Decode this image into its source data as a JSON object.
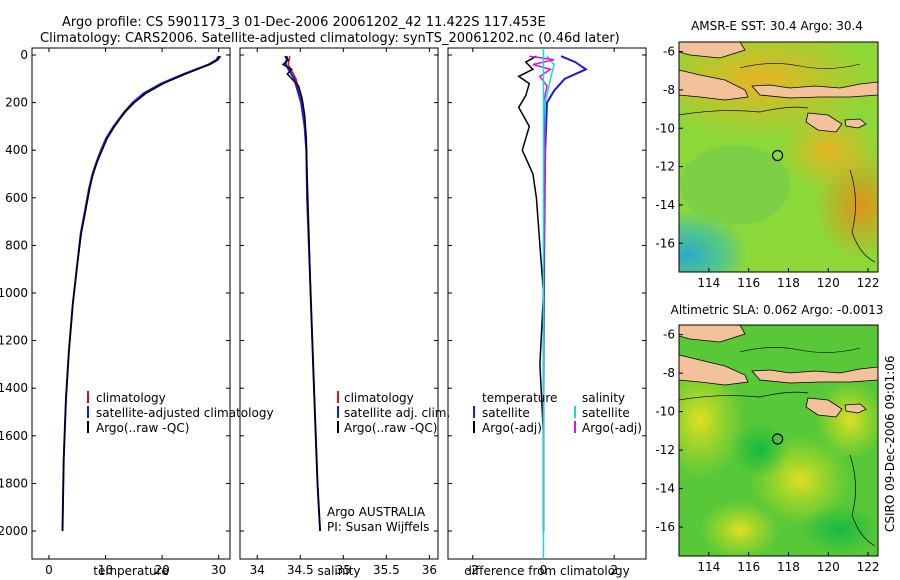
{
  "header": {
    "line1": "Argo profile: CS 5901173_3 01-Dec-2006 20061202_42 11.422S 117.453E",
    "line2": "Climatology: CARS2006. Satellite-adjusted climatology: synTS_20061202.nc (0.46d later)"
  },
  "side_label": "CSIRO 09-Dec-2006 09:01:06",
  "colors": {
    "clim": "#e01010",
    "sat": "#1a1ae6",
    "argo": "#000000",
    "sat_s": "#18d8d8",
    "argo_s": "#e010e0",
    "land": "#f4c29a"
  },
  "chart_data": [
    {
      "type": "line",
      "id": "temperature",
      "xlabel": "temperature",
      "ylabel": "",
      "xlim": [
        -3,
        32
      ],
      "ylim": [
        2080,
        0
      ],
      "xticks": [
        0,
        10,
        20,
        30
      ],
      "yticks": [
        0,
        200,
        400,
        600,
        800,
        1000,
        1200,
        1400,
        1600,
        1800,
        2000
      ],
      "ytick_labels": [
        "0",
        "200",
        "400",
        "600",
        "800",
        "1000",
        "1200",
        "1400",
        "1600",
        "1800",
        "2000"
      ],
      "xtick_labels": [
        "0",
        "10",
        "20",
        "30"
      ],
      "legend": [
        "climatology",
        "satellite-adjusted climatology",
        "Argo(..raw -QC)"
      ],
      "series": [
        {
          "name": "climatology",
          "color_key": "clim",
          "x": [
            30.4,
            29.9,
            28.5,
            24,
            20,
            17,
            15,
            13.5,
            11.5,
            10.2,
            9.3,
            8.5,
            7.8,
            7.2,
            6.5,
            5.7,
            4.9,
            4.2,
            3.5,
            3.0,
            2.6,
            2.4
          ],
          "y": [
            5,
            20,
            40,
            80,
            120,
            160,
            200,
            240,
            300,
            350,
            400,
            450,
            500,
            560,
            650,
            750,
            900,
            1050,
            1250,
            1450,
            1700,
            2000
          ]
        },
        {
          "name": "satellite-adjusted climatology",
          "color_key": "sat",
          "x": [
            30.0,
            29.6,
            28.2,
            23.8,
            19.8,
            16.8,
            14.8,
            13.3,
            11.4,
            10.1,
            9.2,
            8.4,
            7.7,
            7.1,
            6.4,
            5.6,
            4.9,
            4.2,
            3.5,
            3.0,
            2.6,
            2.4
          ],
          "y": [
            5,
            20,
            40,
            80,
            120,
            160,
            200,
            240,
            300,
            350,
            400,
            450,
            500,
            560,
            650,
            750,
            900,
            1050,
            1250,
            1450,
            1700,
            2000
          ]
        },
        {
          "name": "Argo(..raw -QC)",
          "color_key": "argo",
          "x": [
            30.2,
            29.8,
            28.4,
            24.1,
            20.2,
            17.2,
            15.1,
            13.4,
            11.6,
            10.3,
            9.4,
            8.5,
            7.8,
            7.2,
            6.5,
            5.7,
            4.9,
            4.2,
            3.5,
            3.0,
            2.6,
            2.4
          ],
          "y": [
            5,
            20,
            40,
            80,
            120,
            160,
            200,
            240,
            300,
            350,
            400,
            450,
            500,
            560,
            650,
            750,
            900,
            1050,
            1250,
            1450,
            1700,
            2000
          ]
        }
      ]
    },
    {
      "type": "line",
      "id": "salinity",
      "xlabel": "salinity",
      "ylabel": "",
      "xlim": [
        33.8,
        36.1
      ],
      "ylim": [
        2080,
        0
      ],
      "xticks": [
        34,
        34.5,
        35,
        35.5,
        36
      ],
      "xtick_labels": [
        "34",
        "34.5",
        "35",
        "35.5",
        "36"
      ],
      "legend": [
        "climatology",
        "satellite adj. clim.",
        "Argo(..raw -QC)"
      ],
      "annotation": [
        "Argo AUSTRALIA",
        "PI: Susan Wijffels"
      ],
      "series": [
        {
          "name": "climatology",
          "color_key": "clim",
          "x": [
            34.38,
            34.36,
            34.45,
            34.52,
            34.55,
            34.57,
            34.58,
            34.6,
            34.62,
            34.66,
            34.7,
            34.73
          ],
          "y": [
            5,
            40,
            100,
            200,
            300,
            400,
            600,
            800,
            1000,
            1400,
            1800,
            2000
          ]
        },
        {
          "name": "satellite adj. clim.",
          "color_key": "sat",
          "x": [
            34.35,
            34.33,
            34.43,
            34.51,
            34.55,
            34.57,
            34.58,
            34.6,
            34.62,
            34.66,
            34.7,
            34.73
          ],
          "y": [
            5,
            40,
            100,
            200,
            300,
            400,
            600,
            800,
            1000,
            1400,
            1800,
            2000
          ]
        },
        {
          "name": "Argo(..raw -QC)",
          "color_key": "argo",
          "x": [
            34.32,
            34.36,
            34.3,
            34.4,
            34.35,
            34.48,
            34.52,
            34.55,
            34.57,
            34.58,
            34.6,
            34.62,
            34.66,
            34.7,
            34.73
          ],
          "y": [
            5,
            20,
            40,
            60,
            80,
            130,
            180,
            250,
            350,
            500,
            750,
            1000,
            1400,
            1800,
            2000
          ]
        }
      ]
    },
    {
      "type": "line",
      "id": "difference",
      "xlabel": "difference from climatology",
      "ylabel": "",
      "xlim": [
        -2.7,
        2.9
      ],
      "ylim": [
        2080,
        0
      ],
      "xticks": [
        -2,
        0,
        2
      ],
      "xtick_labels": [
        "-2",
        "0",
        "2"
      ],
      "legend_left_title": "temperature",
      "legend_left": [
        "satellite",
        "Argo(-adj)"
      ],
      "legend_right_title": "salinity",
      "legend_right": [
        "satellite",
        "Argo(-adj)"
      ],
      "series": [
        {
          "name": "temperature satellite",
          "color_key": "sat",
          "x": [
            0.5,
            0.9,
            1.2,
            0.6,
            0.3,
            0.1,
            0.05,
            0.02,
            0.0,
            0.0
          ],
          "y": [
            5,
            30,
            60,
            100,
            150,
            200,
            400,
            800,
            1400,
            2000
          ]
        },
        {
          "name": "temperature Argo(-adj)",
          "color_key": "argo",
          "x": [
            -0.2,
            -0.5,
            -0.3,
            -0.7,
            -0.4,
            -0.5,
            -0.7,
            -0.4,
            -0.6,
            -0.3,
            -0.2,
            -0.1,
            0.0,
            -0.1,
            0.0,
            0.0
          ],
          "y": [
            5,
            30,
            60,
            90,
            120,
            170,
            220,
            300,
            400,
            500,
            600,
            800,
            1000,
            1300,
            1600,
            2000
          ]
        },
        {
          "name": "salinity satellite",
          "color_key": "sat_s",
          "x": [
            0.1,
            0.3,
            0.2,
            0.05,
            0.0,
            0.0
          ],
          "y": [
            5,
            40,
            100,
            200,
            800,
            2000
          ]
        },
        {
          "name": "salinity Argo(-adj)",
          "color_key": "argo_s",
          "x": [
            -0.4,
            0.3,
            -0.3,
            0.2,
            -0.1,
            0.1,
            0.0,
            0.05,
            0.0,
            0.0
          ],
          "y": [
            5,
            20,
            40,
            60,
            90,
            130,
            200,
            400,
            1000,
            2000
          ]
        }
      ]
    },
    {
      "type": "heatmap",
      "id": "sst_map",
      "title": "AMSR-E SST: 30.4 Argo: 30.4",
      "xlim": [
        112.5,
        122.5
      ],
      "ylim": [
        -17.5,
        -5.5
      ],
      "xticks": [
        114,
        116,
        118,
        120,
        122
      ],
      "xtick_labels": [
        "114",
        "116",
        "118",
        "120",
        "122"
      ],
      "yticks": [
        -6,
        -8,
        -10,
        -12,
        -14,
        -16
      ],
      "ytick_labels": [
        "-6",
        "-8",
        "-10",
        "-12",
        "-14",
        "-16"
      ],
      "marker": {
        "lon": 117.453,
        "lat": -11.422
      }
    },
    {
      "type": "heatmap",
      "id": "sla_map",
      "title": "Altimetric SLA: 0.062 Argo: -0.0013",
      "xlim": [
        112.5,
        122.5
      ],
      "ylim": [
        -17.5,
        -5.5
      ],
      "xticks": [
        114,
        116,
        118,
        120,
        122
      ],
      "xtick_labels": [
        "114",
        "116",
        "118",
        "120",
        "122"
      ],
      "yticks": [
        -6,
        -8,
        -10,
        -12,
        -14,
        -16
      ],
      "ytick_labels": [
        "-6",
        "-8",
        "-10",
        "-12",
        "-14",
        "-16"
      ],
      "marker": {
        "lon": 117.453,
        "lat": -11.422
      }
    }
  ]
}
